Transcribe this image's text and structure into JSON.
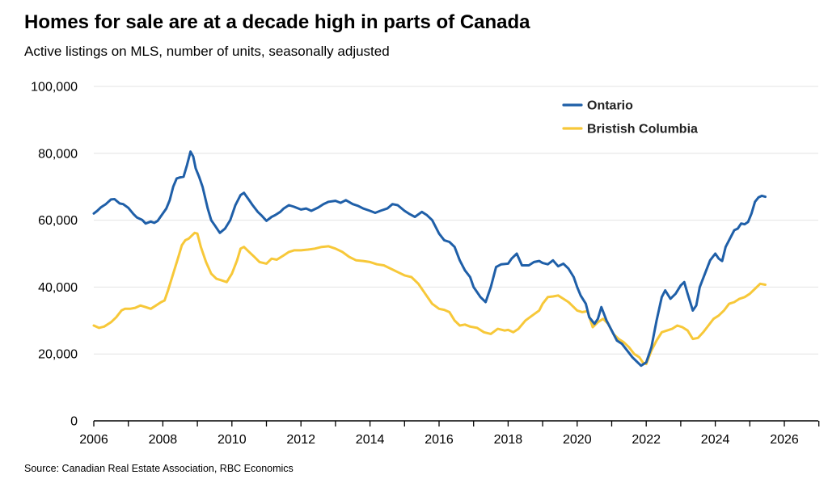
{
  "title": "Homes for sale are at a decade high in parts of Canada",
  "subtitle": "Active listings on MLS, number of units, seasonally adjusted",
  "source": "Source: Canadian Real Estate Association, RBC Economics",
  "chart_data": {
    "type": "line",
    "title": "Homes for sale are at a decade high in parts of Canada",
    "subtitle": "Active listings on MLS, number of units, seasonally adjusted",
    "xlabel": "",
    "ylabel": "",
    "xlim": [
      2006,
      2027
    ],
    "ylim": [
      0,
      100000
    ],
    "grid": true,
    "legend_position": "top-right",
    "x_ticks": [
      2006,
      2008,
      2010,
      2012,
      2014,
      2016,
      2018,
      2020,
      2022,
      2024,
      2026
    ],
    "x_tick_labels": [
      "2006",
      "2008",
      "2010",
      "2012",
      "2014",
      "2016",
      "2018",
      "2020",
      "2022",
      "2024",
      "2026"
    ],
    "y_ticks": [
      0,
      20000,
      40000,
      60000,
      80000,
      100000
    ],
    "y_tick_labels": [
      "0",
      "20,000",
      "40,000",
      "60,000",
      "80,000",
      "100,000"
    ],
    "series": [
      {
        "name": "Ontario",
        "color": "#1f5fa8",
        "x": [
          2006.0,
          2006.1,
          2006.2,
          2006.35,
          2006.5,
          2006.6,
          2006.75,
          2006.85,
          2007.0,
          2007.15,
          2007.25,
          2007.4,
          2007.5,
          2007.65,
          2007.75,
          2007.85,
          2008.0,
          2008.1,
          2008.2,
          2008.3,
          2008.4,
          2008.5,
          2008.6,
          2008.7,
          2008.8,
          2008.88,
          2008.95,
          2009.05,
          2009.15,
          2009.3,
          2009.4,
          2009.5,
          2009.65,
          2009.8,
          2009.95,
          2010.1,
          2010.25,
          2010.35,
          2010.5,
          2010.6,
          2010.75,
          2010.85,
          2011.0,
          2011.15,
          2011.25,
          2011.4,
          2011.5,
          2011.65,
          2011.8,
          2012.0,
          2012.15,
          2012.3,
          2012.5,
          2012.65,
          2012.8,
          2013.0,
          2013.15,
          2013.3,
          2013.5,
          2013.65,
          2013.8,
          2014.0,
          2014.15,
          2014.3,
          2014.5,
          2014.65,
          2014.8,
          2015.0,
          2015.15,
          2015.3,
          2015.5,
          2015.65,
          2015.8,
          2016.0,
          2016.15,
          2016.3,
          2016.45,
          2016.6,
          2016.75,
          2016.9,
          2017.0,
          2017.1,
          2017.2,
          2017.35,
          2017.5,
          2017.65,
          2017.8,
          2018.0,
          2018.1,
          2018.25,
          2018.4,
          2018.6,
          2018.75,
          2018.9,
          2019.0,
          2019.15,
          2019.3,
          2019.45,
          2019.6,
          2019.75,
          2019.9,
          2020.0,
          2020.1,
          2020.25,
          2020.35,
          2020.5,
          2020.6,
          2020.7,
          2020.85,
          2021.0,
          2021.15,
          2021.3,
          2021.45,
          2021.6,
          2021.75,
          2021.85,
          2022.0,
          2022.15,
          2022.3,
          2022.45,
          2022.55,
          2022.7,
          2022.85,
          2023.0,
          2023.1,
          2023.2,
          2023.35,
          2023.45,
          2023.55,
          2023.7,
          2023.85,
          2024.0,
          2024.1,
          2024.2,
          2024.3,
          2024.45,
          2024.55,
          2024.65,
          2024.75,
          2024.85,
          2024.95,
          2025.05,
          2025.15,
          2025.25,
          2025.35,
          2025.45
        ],
        "values": [
          62000,
          62800,
          63800,
          64800,
          66200,
          66300,
          65000,
          64800,
          63700,
          61800,
          60800,
          60100,
          59000,
          59600,
          59200,
          59800,
          62000,
          63500,
          66000,
          70000,
          72500,
          72800,
          73000,
          76500,
          80500,
          79000,
          75500,
          73000,
          70000,
          63500,
          60000,
          58500,
          56200,
          57500,
          60000,
          64500,
          67500,
          68200,
          66000,
          64500,
          62500,
          61500,
          59800,
          61000,
          61500,
          62500,
          63500,
          64500,
          64000,
          63200,
          63500,
          62800,
          63800,
          64800,
          65500,
          65800,
          65200,
          66000,
          64800,
          64300,
          63500,
          62800,
          62200,
          62800,
          63500,
          64800,
          64500,
          62800,
          61800,
          61000,
          62500,
          61500,
          60000,
          56000,
          54000,
          53500,
          52000,
          48000,
          45000,
          43000,
          40000,
          38500,
          37000,
          35500,
          40000,
          46000,
          46800,
          47000,
          48500,
          50000,
          46500,
          46500,
          47500,
          47800,
          47200,
          46800,
          48000,
          46200,
          47000,
          45500,
          43000,
          40000,
          37500,
          35000,
          31000,
          29000,
          30500,
          34000,
          30000,
          27000,
          24000,
          23000,
          21000,
          19000,
          17500,
          16500,
          17500,
          22000,
          30000,
          37000,
          39000,
          36500,
          38000,
          40500,
          41500,
          38000,
          33000,
          34500,
          40000,
          44000,
          48000,
          50000,
          48500,
          47800,
          52000,
          55000,
          57000,
          57500,
          59000,
          58800,
          59500,
          62000,
          65500,
          66800,
          67300,
          67000
        ],
        "end_label": ""
      },
      {
        "name": "Bristish Columbia",
        "color": "#f7c839",
        "x": [
          2006.0,
          2006.15,
          2006.3,
          2006.5,
          2006.65,
          2006.8,
          2006.9,
          2007.05,
          2007.2,
          2007.35,
          2007.5,
          2007.65,
          2007.8,
          2007.95,
          2008.05,
          2008.15,
          2008.3,
          2008.45,
          2008.55,
          2008.65,
          2008.75,
          2008.85,
          2008.92,
          2009.0,
          2009.1,
          2009.25,
          2009.4,
          2009.55,
          2009.7,
          2009.85,
          2010.0,
          2010.15,
          2010.25,
          2010.35,
          2010.5,
          2010.65,
          2010.8,
          2011.0,
          2011.15,
          2011.3,
          2011.5,
          2011.65,
          2011.8,
          2012.0,
          2012.2,
          2012.4,
          2012.6,
          2012.8,
          2013.0,
          2013.2,
          2013.4,
          2013.6,
          2013.8,
          2014.0,
          2014.2,
          2014.4,
          2014.6,
          2014.8,
          2015.0,
          2015.2,
          2015.4,
          2015.6,
          2015.8,
          2016.0,
          2016.15,
          2016.3,
          2016.45,
          2016.6,
          2016.75,
          2016.9,
          2017.1,
          2017.3,
          2017.5,
          2017.7,
          2017.9,
          2018.0,
          2018.15,
          2018.3,
          2018.5,
          2018.7,
          2018.9,
          2019.0,
          2019.15,
          2019.3,
          2019.45,
          2019.6,
          2019.75,
          2019.9,
          2020.0,
          2020.15,
          2020.3,
          2020.45,
          2020.6,
          2020.75,
          2020.9,
          2021.05,
          2021.2,
          2021.35,
          2021.5,
          2021.65,
          2021.8,
          2021.9,
          2022.0,
          2022.15,
          2022.3,
          2022.45,
          2022.6,
          2022.75,
          2022.9,
          2023.05,
          2023.2,
          2023.35,
          2023.5,
          2023.65,
          2023.8,
          2023.95,
          2024.1,
          2024.25,
          2024.4,
          2024.55,
          2024.7,
          2024.85,
          2025.0,
          2025.15,
          2025.3,
          2025.45
        ],
        "values": [
          28500,
          27800,
          28200,
          29500,
          31000,
          33000,
          33500,
          33500,
          33800,
          34500,
          34000,
          33500,
          34500,
          35500,
          36000,
          39000,
          44000,
          49000,
          52500,
          54000,
          54500,
          55500,
          56200,
          56000,
          52000,
          47500,
          44000,
          42500,
          42000,
          41500,
          44000,
          48000,
          51500,
          52000,
          50500,
          49000,
          47500,
          47000,
          48500,
          48200,
          49500,
          50500,
          51000,
          51000,
          51200,
          51500,
          52000,
          52200,
          51500,
          50500,
          49000,
          48000,
          47800,
          47500,
          46800,
          46500,
          45500,
          44500,
          43500,
          43000,
          41000,
          38000,
          35000,
          33500,
          33200,
          32500,
          30000,
          28500,
          28800,
          28200,
          27800,
          26500,
          26000,
          27500,
          27000,
          27200,
          26500,
          27500,
          30000,
          31500,
          33000,
          35000,
          37000,
          37200,
          37500,
          36500,
          35500,
          34000,
          33000,
          32500,
          32800,
          28000,
          29500,
          30500,
          29000,
          26000,
          24500,
          23500,
          22000,
          20000,
          19000,
          17500,
          17000,
          21000,
          24000,
          26500,
          27000,
          27500,
          28500,
          28000,
          27000,
          24500,
          24800,
          26500,
          28500,
          30500,
          31500,
          33000,
          35000,
          35500,
          36500,
          37000,
          38000,
          39500,
          41000,
          40700
        ],
        "end_label": ""
      }
    ]
  }
}
